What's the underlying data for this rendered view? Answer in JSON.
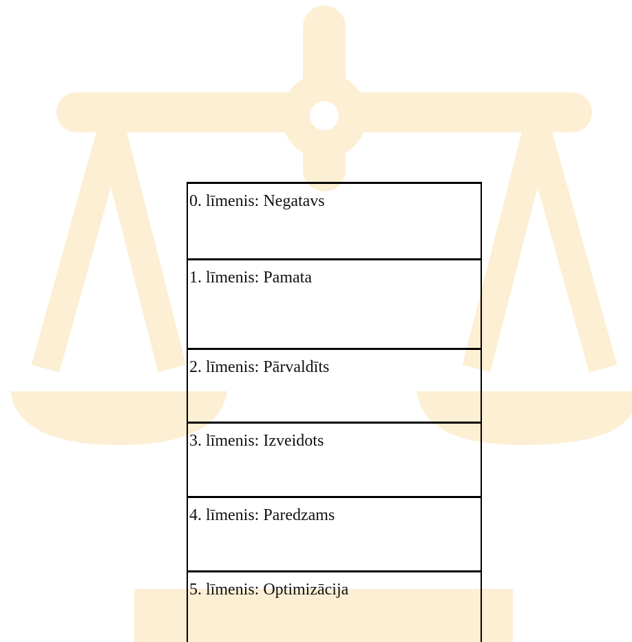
{
  "table": {
    "rows": [
      "0. līmenis: Negatavs",
      "1. līmenis: Pamata",
      "2. līmenis: Pārvaldīts",
      "3. līmenis: Izveidots",
      "4. līmenis: Paredzams",
      "5. līmenis: Optimizācija"
    ]
  }
}
